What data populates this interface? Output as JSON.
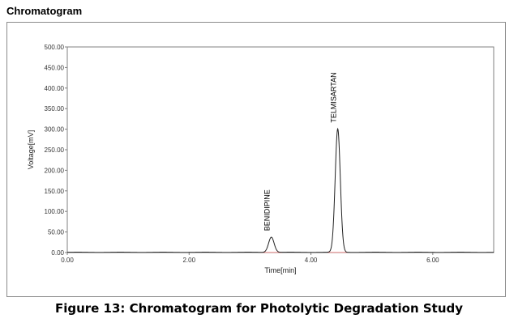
{
  "heading": "Chromatogram",
  "caption": "Figure 13: Chromatogram for Photolytic Degradation Study",
  "chart_data": {
    "type": "line",
    "xlabel": "Time[min]",
    "ylabel": "Voltage[mV]",
    "xlim": [
      0,
      7.0
    ],
    "ylim": [
      0,
      500
    ],
    "x_ticks": [
      {
        "value": 0,
        "label": "0.00"
      },
      {
        "value": 2,
        "label": "2.00"
      },
      {
        "value": 4,
        "label": "4.00"
      },
      {
        "value": 6,
        "label": "6.00"
      }
    ],
    "y_ticks": [
      {
        "value": 0,
        "label": "0.00"
      },
      {
        "value": 50,
        "label": "50.00"
      },
      {
        "value": 100,
        "label": "100.00"
      },
      {
        "value": 150,
        "label": "150.00"
      },
      {
        "value": 200,
        "label": "200.00"
      },
      {
        "value": 250,
        "label": "250.00"
      },
      {
        "value": 300,
        "label": "300.00"
      },
      {
        "value": 350,
        "label": "350.00"
      },
      {
        "value": 400,
        "label": "400.00"
      },
      {
        "value": 450,
        "label": "450.00"
      },
      {
        "value": 500,
        "label": "500.00"
      }
    ],
    "grid": false,
    "line_color": "#222222",
    "baseline_color": "#e06060",
    "peaks": [
      {
        "label": "BENIDIPINE",
        "rt": 3.35,
        "height": 37,
        "width": 0.045
      },
      {
        "label": "TELMISARTAN",
        "rt": 4.44,
        "height": 300,
        "width": 0.042
      }
    ]
  }
}
